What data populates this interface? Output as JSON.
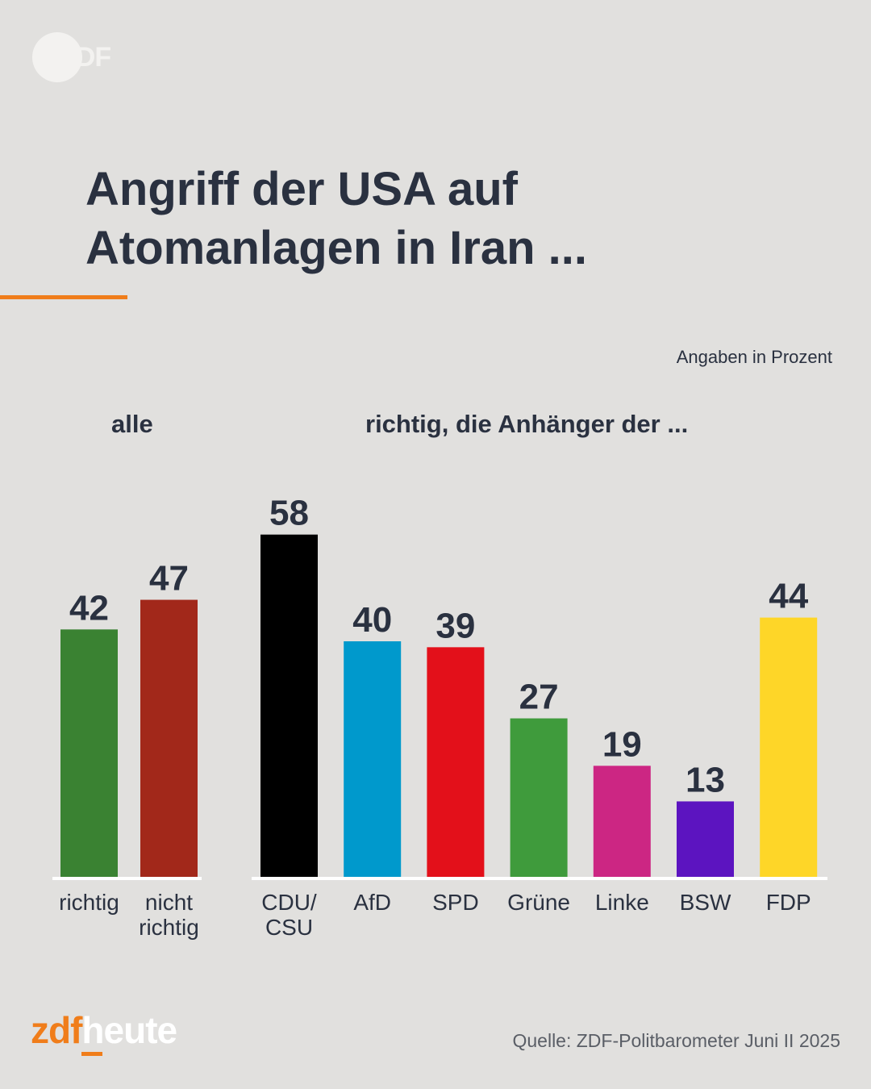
{
  "logo": {
    "text": "ZDF"
  },
  "title": {
    "line1": "Angriff der USA auf",
    "line2": "Atomanlagen in Iran ..."
  },
  "unit_note": "Angaben in Prozent",
  "colors": {
    "accent": "#f07d1a",
    "text": "#2a3140",
    "background": "#e1e0de"
  },
  "chart_data": [
    {
      "type": "bar",
      "group_label": "alle",
      "categories": [
        [
          "richtig"
        ],
        [
          "nicht",
          "richtig"
        ]
      ],
      "values": [
        42,
        47
      ],
      "colors": [
        "#3a8232",
        "#a2281a"
      ],
      "ylim": [
        0,
        60
      ]
    },
    {
      "type": "bar",
      "group_label": "richtig, die Anhänger der ...",
      "categories": [
        [
          "CDU/",
          "CSU"
        ],
        [
          "AfD"
        ],
        [
          "SPD"
        ],
        [
          "Grüne"
        ],
        [
          "Linke"
        ],
        [
          "BSW"
        ],
        [
          "FDP"
        ]
      ],
      "values": [
        58,
        40,
        39,
        27,
        19,
        13,
        44
      ],
      "colors": [
        "#000000",
        "#0099cc",
        "#e3101a",
        "#3f9b3c",
        "#cc2683",
        "#5c14c0",
        "#fed628"
      ],
      "ylim": [
        0,
        60
      ]
    }
  ],
  "footer": {
    "brand_zdf": "zdf",
    "brand_heute": "heute",
    "source": "Quelle: ZDF-Politbarometer Juni II 2025"
  }
}
